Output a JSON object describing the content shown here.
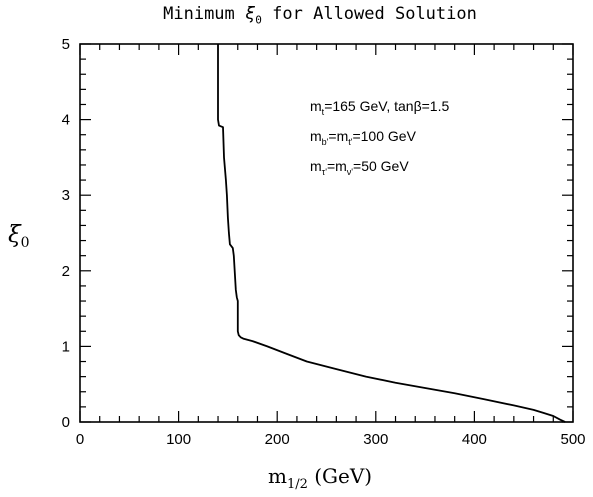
{
  "chart_data": {
    "type": "line",
    "title": "Minimum ξ₀ for Allowed Solution",
    "title_main": "Minimum",
    "title_var": "ξ",
    "title_sub": "0",
    "title_rest": "for Allowed Solution",
    "xlabel": "m",
    "xlabel_sub": "1/2",
    "xlabel_unit": "(GeV)",
    "ylabel": "ξ",
    "ylabel_sub": "0",
    "xlim": [
      0,
      500
    ],
    "ylim": [
      0,
      5
    ],
    "x_ticks": [
      "0",
      "100",
      "200",
      "300",
      "400",
      "500"
    ],
    "y_ticks": [
      "0",
      "1",
      "2",
      "3",
      "4",
      "5"
    ],
    "grid": false,
    "series": [
      {
        "x": [
          140,
          140,
          141,
          145,
          146,
          148,
          149,
          150,
          151,
          152,
          155,
          156,
          158,
          159,
          160,
          160,
          161,
          163,
          166,
          175,
          190,
          210,
          230,
          260,
          290,
          320,
          350,
          380,
          410,
          440,
          460,
          470,
          480,
          487,
          492
        ],
        "y": [
          5.0,
          4.0,
          3.92,
          3.9,
          3.5,
          3.2,
          3.0,
          2.7,
          2.5,
          2.35,
          2.3,
          2.2,
          1.75,
          1.65,
          1.6,
          1.2,
          1.15,
          1.12,
          1.1,
          1.07,
          1.0,
          0.9,
          0.8,
          0.7,
          0.6,
          0.52,
          0.45,
          0.38,
          0.3,
          0.22,
          0.16,
          0.12,
          0.08,
          0.03,
          0.0
        ]
      }
    ],
    "annotations": [
      {
        "parts": [
          [
            "m",
            ""
          ],
          [
            "t",
            "sub"
          ],
          [
            "=165 GeV, tanβ=1.5",
            ""
          ]
        ]
      },
      {
        "parts": [
          [
            "m",
            ""
          ],
          [
            "b'",
            "sub"
          ],
          [
            "=m",
            ""
          ],
          [
            "t'",
            "sub"
          ],
          [
            "=100 GeV",
            ""
          ]
        ]
      },
      {
        "parts": [
          [
            "m",
            ""
          ],
          [
            "τ'",
            "sub"
          ],
          [
            "=m",
            ""
          ],
          [
            "ν'",
            "sub"
          ],
          [
            "=50 GeV",
            ""
          ]
        ]
      }
    ]
  }
}
